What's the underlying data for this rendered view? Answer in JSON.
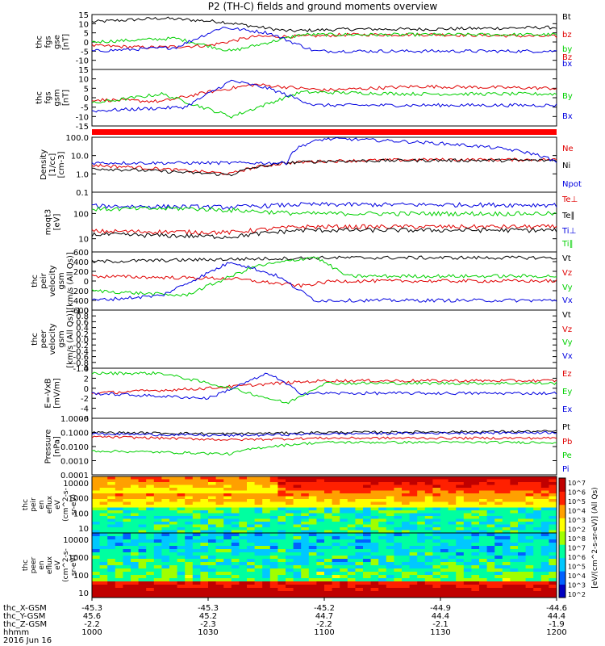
{
  "title": "P2 (TH-C) fields and ground moments overview",
  "colors": {
    "black": "#000000",
    "red": "#e00000",
    "green": "#00d000",
    "blue": "#0000e0",
    "bar_red": "#ff0000"
  },
  "panels": [
    {
      "ylabel": [
        "thc",
        "fgs",
        "gse",
        "[nT]"
      ],
      "ylim": [
        -15,
        15
      ],
      "scale": "linear",
      "ticks": [
        "15",
        "10",
        "5",
        "0",
        "-5",
        "-10"
      ],
      "series": [
        {
          "name": "Bt",
          "color": "black",
          "levels": [
            [
              0,
              11
            ],
            [
              0.15,
              13
            ],
            [
              0.28,
              11
            ],
            [
              0.42,
              6
            ],
            [
              0.55,
              7
            ],
            [
              0.72,
              7
            ],
            [
              1,
              8
            ]
          ]
        },
        {
          "name": "bz",
          "color": "red",
          "levels": [
            [
              0,
              -2
            ],
            [
              0.12,
              -3
            ],
            [
              0.25,
              -2
            ],
            [
              0.35,
              3
            ],
            [
              0.45,
              3
            ],
            [
              0.55,
              4
            ],
            [
              0.75,
              4
            ],
            [
              1,
              3
            ]
          ]
        },
        {
          "name": "by",
          "color": "green",
          "levels": [
            [
              0,
              0
            ],
            [
              0.18,
              2
            ],
            [
              0.3,
              -5
            ],
            [
              0.45,
              4
            ],
            [
              0.7,
              4
            ],
            [
              1,
              4
            ]
          ]
        },
        {
          "name": "bx",
          "color": "blue",
          "levels": [
            [
              0,
              -5
            ],
            [
              0.18,
              -3
            ],
            [
              0.28,
              8
            ],
            [
              0.38,
              5
            ],
            [
              0.48,
              -5
            ],
            [
              0.7,
              -5
            ],
            [
              1,
              -5
            ]
          ]
        }
      ]
    },
    {
      "ylabel": [
        "thc",
        "fgs",
        "gsm",
        "[nT]"
      ],
      "ylim": [
        -15,
        15
      ],
      "scale": "linear",
      "ticks": [
        "15",
        "10",
        "5",
        "0",
        "-5",
        "-10",
        "-15"
      ],
      "series": [
        {
          "name": "Bz",
          "color": "red",
          "levels": [
            [
              0,
              -1
            ],
            [
              0.15,
              -2
            ],
            [
              0.25,
              3
            ],
            [
              0.35,
              7
            ],
            [
              0.5,
              4
            ],
            [
              0.7,
              6
            ],
            [
              1,
              5
            ]
          ]
        },
        {
          "name": "By",
          "color": "green",
          "levels": [
            [
              0,
              -3
            ],
            [
              0.15,
              2
            ],
            [
              0.3,
              -10
            ],
            [
              0.45,
              3
            ],
            [
              0.7,
              2
            ],
            [
              1,
              2
            ]
          ]
        },
        {
          "name": "Bx",
          "color": "blue",
          "levels": [
            [
              0,
              -7
            ],
            [
              0.2,
              -5
            ],
            [
              0.3,
              9
            ],
            [
              0.38,
              5
            ],
            [
              0.48,
              -4
            ],
            [
              0.7,
              -4
            ],
            [
              1,
              -4
            ]
          ]
        }
      ]
    },
    {
      "ylabel": [
        "Density",
        "[1/cc]",
        "[cm-3]"
      ],
      "ylim": [
        0.1,
        100
      ],
      "scale": "log",
      "ticks": [
        "100.0",
        "10.0",
        "1.0",
        "0.1"
      ],
      "series": [
        {
          "name": "Ne",
          "color": "red",
          "levels": [
            [
              0,
              3
            ],
            [
              0.2,
              1.5
            ],
            [
              0.3,
              1
            ],
            [
              0.42,
              4
            ],
            [
              0.5,
              5
            ],
            [
              0.7,
              6
            ],
            [
              1,
              6
            ]
          ]
        },
        {
          "name": "Ni",
          "color": "black",
          "levels": [
            [
              0,
              2
            ],
            [
              0.2,
              1.2
            ],
            [
              0.3,
              0.9
            ],
            [
              0.42,
              4
            ],
            [
              0.5,
              5
            ],
            [
              0.7,
              5.5
            ],
            [
              1,
              5.5
            ]
          ]
        },
        {
          "name": "Npot",
          "color": "blue",
          "levels": [
            [
              0,
              4
            ],
            [
              0.05,
              4
            ],
            [
              0.3,
              4
            ],
            [
              0.42,
              4
            ],
            [
              0.5,
              80
            ],
            [
              0.55,
              80
            ],
            [
              1,
              4
            ]
          ]
        }
      ]
    },
    {
      "ylabel": [
        "moqt3",
        "[eV]"
      ],
      "ylim": [
        3,
        700
      ],
      "scale": "log",
      "ticks": [
        "100",
        "10"
      ],
      "series": [
        {
          "name": "Te⊥",
          "color": "red",
          "levels": [
            [
              0,
              20
            ],
            [
              0.3,
              18
            ],
            [
              0.45,
              30
            ],
            [
              1,
              30
            ]
          ]
        },
        {
          "name": "Te∥",
          "color": "black",
          "levels": [
            [
              0,
              15
            ],
            [
              0.3,
              12
            ],
            [
              0.45,
              22
            ],
            [
              1,
              22
            ]
          ]
        },
        {
          "name": "Ti⊥",
          "color": "blue",
          "levels": [
            [
              0,
              200
            ],
            [
              0.3,
              180
            ],
            [
              0.45,
              230
            ],
            [
              1,
              220
            ]
          ]
        },
        {
          "name": "Ti∥",
          "color": "green",
          "levels": [
            [
              0,
              150
            ],
            [
              0.2,
              160
            ],
            [
              0.45,
              100
            ],
            [
              1,
              100
            ]
          ]
        }
      ]
    },
    {
      "ylabel": [
        "thc",
        "peir",
        "velocity",
        "gsm",
        "[km/s (All Qs)]"
      ],
      "ylim": [
        -600,
        600
      ],
      "scale": "linear",
      "ticks": [
        "600",
        "400",
        "200",
        "0",
        "-200",
        "-400",
        "-600"
      ],
      "series": [
        {
          "name": "Vt",
          "color": "black",
          "levels": [
            [
              0,
              400
            ],
            [
              0.3,
              450
            ],
            [
              0.5,
              480
            ],
            [
              1,
              480
            ]
          ]
        },
        {
          "name": "Vz",
          "color": "red",
          "levels": [
            [
              0,
              100
            ],
            [
              0.3,
              50
            ],
            [
              0.45,
              -100
            ],
            [
              0.52,
              0
            ],
            [
              1,
              0
            ]
          ]
        },
        {
          "name": "Vy",
          "color": "green",
          "levels": [
            [
              0,
              -200
            ],
            [
              0.2,
              -300
            ],
            [
              0.35,
              300
            ],
            [
              0.48,
              500
            ],
            [
              0.55,
              100
            ],
            [
              1,
              100
            ]
          ]
        },
        {
          "name": "Vx",
          "color": "blue",
          "levels": [
            [
              0,
              -400
            ],
            [
              0.15,
              -300
            ],
            [
              0.3,
              400
            ],
            [
              0.4,
              100
            ],
            [
              0.48,
              -400
            ],
            [
              0.52,
              -400
            ],
            [
              1,
              -400
            ]
          ]
        }
      ]
    },
    {
      "ylabel": [
        "thc",
        "peer",
        "velocity",
        "gsm",
        "[km/s (All Qs)]"
      ],
      "ylim": [
        -1,
        1
      ],
      "scale": "linear",
      "ticks": [
        "1.0",
        "0.8",
        "0.6",
        "0.4",
        "0.2",
        "0.0",
        "-0.2",
        "-0.4",
        "-0.6",
        "-0.8",
        "-1.0"
      ],
      "series": [
        {
          "name": "Vt",
          "color": "black",
          "levels": []
        },
        {
          "name": "Vz",
          "color": "red",
          "levels": []
        },
        {
          "name": "Vy",
          "color": "green",
          "levels": []
        },
        {
          "name": "Vx",
          "color": "blue",
          "levels": []
        }
      ]
    },
    {
      "ylabel": [
        "E=-VxB",
        "[mV/m]"
      ],
      "ylim": [
        -6,
        4
      ],
      "scale": "linear",
      "ticks": [
        "4",
        "2",
        "0",
        "-2",
        "-4",
        "-6"
      ],
      "series": [
        {
          "name": "Ez",
          "color": "red",
          "levels": [
            [
              0,
              -1
            ],
            [
              0.25,
              0
            ],
            [
              0.4,
              1
            ],
            [
              0.5,
              1.5
            ],
            [
              0.7,
              1.5
            ],
            [
              1,
              1.5
            ]
          ]
        },
        {
          "name": "Ey",
          "color": "green",
          "levels": [
            [
              0,
              3
            ],
            [
              0.15,
              3
            ],
            [
              0.3,
              0
            ],
            [
              0.42,
              -3
            ],
            [
              0.5,
              1
            ],
            [
              0.7,
              1
            ],
            [
              1,
              1
            ]
          ]
        },
        {
          "name": "Ex",
          "color": "blue",
          "levels": [
            [
              0,
              -1
            ],
            [
              0.25,
              -2
            ],
            [
              0.38,
              3
            ],
            [
              0.45,
              -1
            ],
            [
              0.6,
              -1
            ],
            [
              1,
              -1
            ]
          ]
        }
      ]
    },
    {
      "ylabel": [
        "Pressure",
        "[nPa]"
      ],
      "ylim": [
        0.0001,
        1
      ],
      "scale": "log",
      "ticks": [
        "1.0000",
        "0.1000",
        "0.0100",
        "0.0010",
        "0.0001"
      ],
      "series": [
        {
          "name": "Pt",
          "color": "black",
          "levels": [
            [
              0,
              0.1
            ],
            [
              0.3,
              0.08
            ],
            [
              0.5,
              0.1
            ],
            [
              1,
              0.12
            ]
          ]
        },
        {
          "name": "Pb",
          "color": "red",
          "levels": [
            [
              0,
              0.05
            ],
            [
              0.3,
              0.03
            ],
            [
              0.5,
              0.04
            ],
            [
              1,
              0.04
            ]
          ]
        },
        {
          "name": "Pe",
          "color": "green",
          "levels": [
            [
              0,
              0.005
            ],
            [
              0.3,
              0.003
            ],
            [
              0.5,
              0.02
            ],
            [
              1,
              0.02
            ]
          ]
        },
        {
          "name": "Pi",
          "color": "blue",
          "levels": [
            [
              0,
              0.08
            ],
            [
              0.3,
              0.06
            ],
            [
              0.5,
              0.08
            ],
            [
              1,
              0.1
            ]
          ]
        }
      ]
    }
  ],
  "spectrograms": [
    {
      "ylabel": [
        "thc",
        "peir",
        "en",
        "eflux",
        "eV",
        "(cm^2-s-",
        "sr-eV)"
      ],
      "ticks": [
        "10000",
        "1000",
        "100",
        "10"
      ]
    },
    {
      "ylabel": [
        "thc",
        "peer",
        "en",
        "eflux",
        "eV",
        "(cm^2-s-",
        "sr-eV)"
      ],
      "ticks": [
        "10000",
        "1000",
        "100",
        "10"
      ]
    }
  ],
  "colorbar": {
    "label": "[eV/(cm^2-s-sr-eV)] (All Qs)",
    "ticks": [
      "10^7",
      "10^6",
      "10^5",
      "10^4",
      "10^3",
      "10^2",
      "10^8",
      "10^7",
      "10^6",
      "10^5",
      "10^4",
      "10^3",
      "10^2"
    ]
  },
  "xaxis": {
    "tick_positions": [
      "1000",
      "1030",
      "1100",
      "1130",
      "1200"
    ],
    "rows": [
      {
        "label": "thc_X-GSM",
        "values": [
          "-45.3",
          "-45.3",
          "-45.2",
          "-44.9",
          "-44.6"
        ]
      },
      {
        "label": "thc_Y-GSM",
        "values": [
          "45.6",
          "45.2",
          "44.7",
          "44.4",
          "44.4"
        ]
      },
      {
        "label": "thc_Z-GSM",
        "values": [
          "-2.2",
          "-2.3",
          "-2.2",
          "-2.1",
          "-1.9"
        ]
      },
      {
        "label": "hhmm",
        "values": [
          "1000",
          "1030",
          "1100",
          "1130",
          "1200"
        ]
      }
    ],
    "date": "2016 Jun 16"
  }
}
